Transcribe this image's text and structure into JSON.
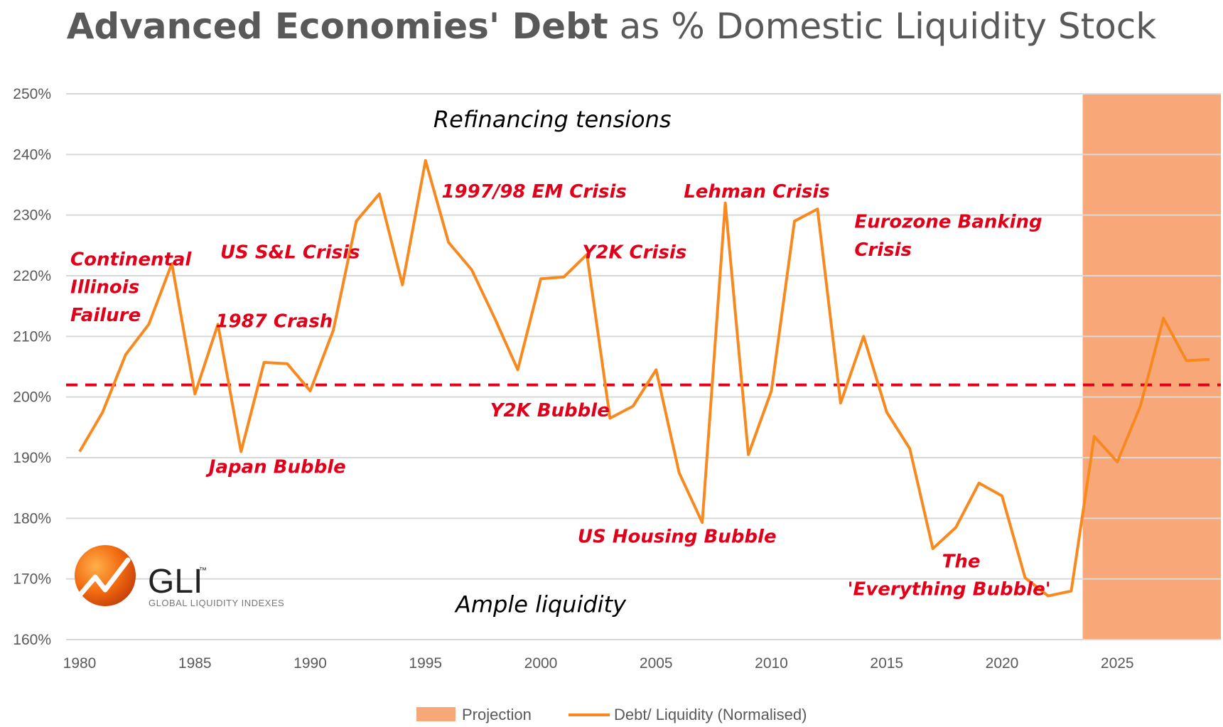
{
  "title": {
    "bold": "Advanced Economies' Debt",
    "rest": " as % Domestic Liquidity Stock"
  },
  "chart_data": {
    "type": "line",
    "title": "Advanced Economies' Debt as % Domestic Liquidity Stock",
    "xlabel": "",
    "ylabel": "",
    "xlim": [
      1979.5,
      2029.5
    ],
    "ylim": [
      160,
      250
    ],
    "y_ticks": [
      160,
      170,
      180,
      190,
      200,
      210,
      220,
      230,
      240,
      250
    ],
    "y_tick_labels": [
      "160%",
      "170%",
      "180%",
      "190%",
      "200%",
      "210%",
      "220%",
      "230%",
      "240%",
      "250%"
    ],
    "x_ticks": [
      1980,
      1985,
      1990,
      1995,
      2000,
      2005,
      2010,
      2015,
      2020,
      2025
    ],
    "x_tick_labels": [
      "1980",
      "1985",
      "1990",
      "1995",
      "2000",
      "2005",
      "2010",
      "2015",
      "2020",
      "2025"
    ],
    "grid": true,
    "series": [
      {
        "name": "Debt/ Liquidity (Normalised)",
        "color": "#f7891f",
        "x": [
          1980,
          1981,
          1982,
          1983,
          1984,
          1985,
          1986,
          1987,
          1988,
          1989,
          1990,
          1991,
          1992,
          1993,
          1994,
          1995,
          1996,
          1997,
          1998,
          1999,
          2000,
          2001,
          2002,
          2003,
          2004,
          2005,
          2006,
          2007,
          2008,
          2009,
          2010,
          2011,
          2012,
          2013,
          2014,
          2015,
          2016,
          2017,
          2018,
          2019,
          2020,
          2021,
          2022,
          2023,
          2024,
          2025,
          2026,
          2027,
          2028,
          2029
        ],
        "values": [
          191,
          197.5,
          207,
          212,
          222,
          200.5,
          212,
          191,
          205.7,
          205.5,
          201,
          211,
          229,
          233.5,
          218.5,
          239,
          225.5,
          221,
          213,
          204.5,
          219.5,
          219.8,
          223.5,
          196.5,
          198.5,
          204.5,
          187.5,
          179.3,
          232,
          190.5,
          201,
          229,
          231,
          199,
          210,
          197.5,
          191.5,
          175,
          178.5,
          185.8,
          183.7,
          170.2,
          167.2,
          168,
          193.5,
          189.3,
          198.5,
          213,
          206,
          206.2
        ]
      }
    ],
    "reference_line": {
      "value": 202,
      "color": "#e1001a",
      "style": "dashed"
    },
    "projection": {
      "from": 2023.5,
      "to": 2029.5,
      "label": "Projection",
      "color": "#f8a878"
    },
    "zone_labels": [
      {
        "text": "Refinancing tensions",
        "x": 2000.5,
        "y": 244.5
      },
      {
        "text": "Ample liquidity",
        "x": 2000,
        "y": 164.5
      }
    ],
    "annotations": [
      {
        "text": "Continental",
        "x": 1979.6,
        "y": 221.7
      },
      {
        "text": "Illinois",
        "x": 1979.6,
        "y": 217.1
      },
      {
        "text": "Failure",
        "x": 1979.6,
        "y": 212.5
      },
      {
        "text": "US S&L Crisis",
        "x": 1986.1,
        "y": 222.9
      },
      {
        "text": "1987 Crash",
        "x": 1985.9,
        "y": 211.5
      },
      {
        "text": "Japan Bubble",
        "x": 1985.6,
        "y": 187.5
      },
      {
        "text": "1997/98 EM Crisis",
        "x": 1995.7,
        "y": 232.9
      },
      {
        "text": "Y2K Crisis",
        "x": 2001.8,
        "y": 222.9
      },
      {
        "text": "Y2K Bubble",
        "x": 1997.8,
        "y": 196.8
      },
      {
        "text": "Lehman Crisis",
        "x": 2006.2,
        "y": 232.9
      },
      {
        "text": "Eurozone Banking",
        "x": 2013.6,
        "y": 227.9
      },
      {
        "text": "Crisis",
        "x": 2013.6,
        "y": 223.3
      },
      {
        "text": "US Housing Bubble",
        "x": 2001.6,
        "y": 176
      },
      {
        "text": "The",
        "x": 2017.4,
        "y": 171.9
      },
      {
        "text": "'Everything Bubble'",
        "x": 2013.3,
        "y": 167.3
      }
    ],
    "legend": {
      "position": "bottom",
      "items": [
        "Projection",
        "Debt/ Liquidity (Normalised)"
      ]
    }
  },
  "logo": {
    "main": "GLI",
    "tm": "™",
    "sub": "GLOBAL LIQUIDITY INDEXES"
  }
}
